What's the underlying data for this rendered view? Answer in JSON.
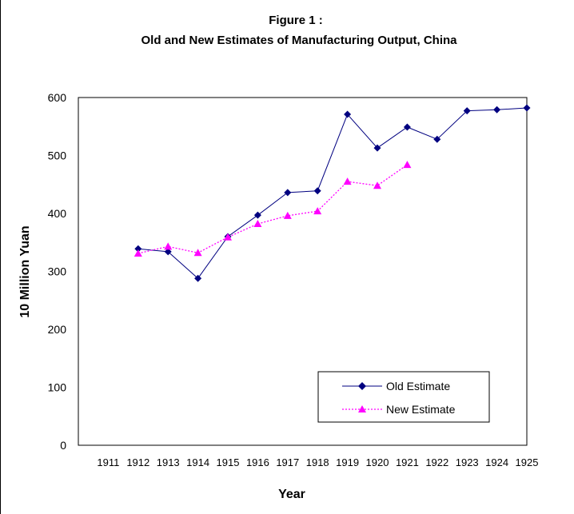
{
  "chart_data": {
    "type": "line",
    "title": "Figure 1 :",
    "subtitle": "Old and New Estimates of Manufacturing Output, China",
    "xlabel": "Year",
    "ylabel": "10 Million Yuan",
    "ylim": [
      0,
      600
    ],
    "yticks": [
      "0",
      "100",
      "200",
      "300",
      "400",
      "500",
      "600"
    ],
    "categories": [
      "1911",
      "1912",
      "1913",
      "1914",
      "1915",
      "1916",
      "1917",
      "1918",
      "1919",
      "1920",
      "1921",
      "1922",
      "1923",
      "1924",
      "1925"
    ],
    "grid": false,
    "legend_position": "bottom-right",
    "series": [
      {
        "name": "Old Estimate",
        "color": "#000080",
        "marker": "diamond",
        "line": "solid",
        "values": [
          null,
          339,
          334,
          288,
          360,
          397,
          436,
          439,
          571,
          513,
          549,
          528,
          577,
          579,
          582
        ]
      },
      {
        "name": "New Estimate",
        "color": "#ff00ff",
        "marker": "triangle",
        "line": "dotted",
        "values": [
          null,
          331,
          343,
          332,
          359,
          382,
          396,
          404,
          455,
          448,
          484,
          null,
          null,
          null,
          null
        ]
      }
    ]
  }
}
